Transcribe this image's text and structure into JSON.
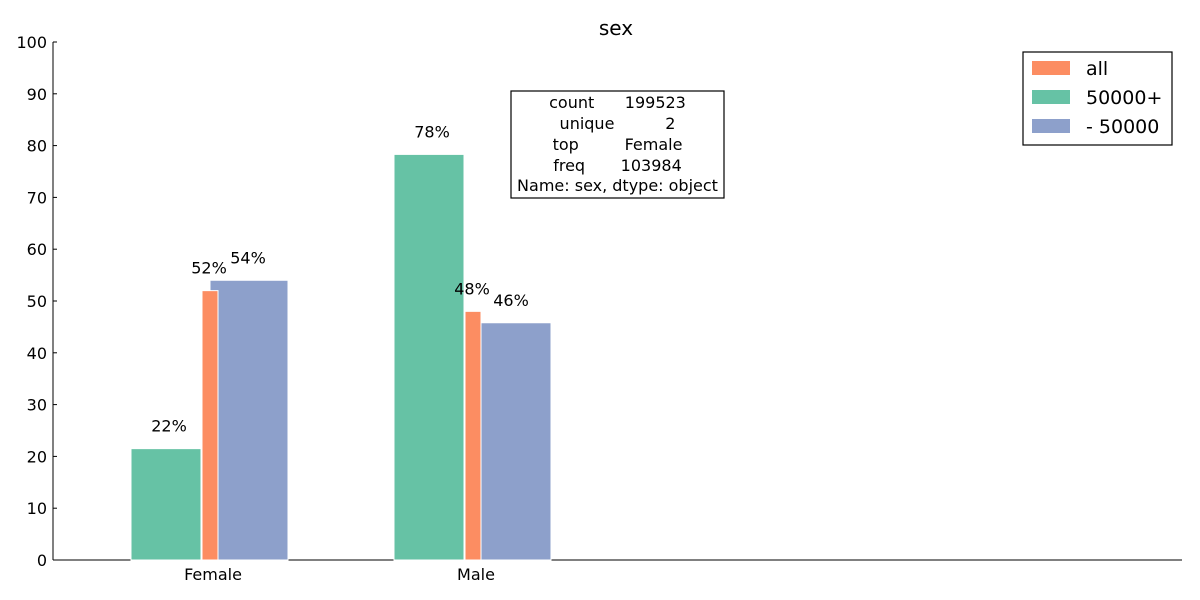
{
  "chart_data": {
    "type": "bar",
    "title": "sex",
    "xlabel": "",
    "ylabel": "",
    "categories": [
      "Female",
      "Male"
    ],
    "ylim": [
      0,
      100
    ],
    "yticks": [
      0,
      10,
      20,
      30,
      40,
      50,
      60,
      70,
      80,
      90,
      100
    ],
    "grid": false,
    "legend_position": "top-right",
    "series": [
      {
        "name": "all",
        "color": "#fc8d62",
        "values": [
          52,
          48
        ],
        "labels": [
          "52%",
          "48%"
        ]
      },
      {
        "name": "50000+",
        "color": "#66c2a5",
        "values": [
          21.5,
          78.3
        ],
        "labels": [
          "22%",
          "78%"
        ]
      },
      {
        "name": "- 50000",
        "color": "#8da0cb",
        "values": [
          54,
          45.8
        ],
        "labels": [
          "54%",
          "46%"
        ]
      }
    ],
    "annotation": {
      "lines": [
        "count      199523",
        "unique          2",
        "top         Female",
        "freq       103984",
        "Name: sex, dtype: object"
      ]
    }
  }
}
